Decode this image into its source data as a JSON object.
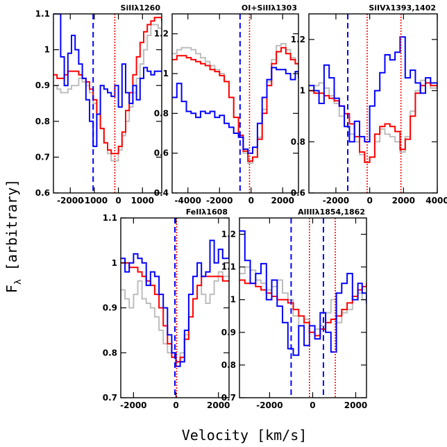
{
  "figure": {
    "ylabel_main": "F",
    "ylabel_sub": "λ",
    "ylabel_rest": " [arbitrary]",
    "xlabel": "Velocity [km/s]"
  },
  "colors": {
    "red": "#ff0000",
    "blue": "#0000ff",
    "gray": "#bdbdbd",
    "axis": "#000000"
  },
  "chart_data": [
    {
      "type": "line",
      "title": "SiIIλ1260",
      "xlim": [
        -2700,
        1800
      ],
      "ylim": [
        0.6,
        1.1
      ],
      "xticks": [
        -2000,
        -1000,
        0,
        1000
      ],
      "xtick_labels": [
        "-2000",
        "-1000",
        "0",
        "1000"
      ],
      "yticks": [
        0.6,
        0.7,
        0.8,
        0.9,
        1.0,
        1.1
      ],
      "ytick_labels": [
        "0.6",
        "0.7",
        "0.8",
        "0.9",
        "1",
        "1.1"
      ],
      "dashed": [
        -1050
      ],
      "dotted": [
        -150
      ],
      "series": [
        {
          "color": "gray",
          "x": [
            -2700,
            -2550,
            -2400,
            -2250,
            -2100,
            -1950,
            -1800,
            -1650,
            -1500,
            -1350,
            -1200,
            -1050,
            -900,
            -750,
            -600,
            -450,
            -300,
            -150,
            0,
            150,
            300,
            450,
            600,
            750,
            900,
            1050,
            1200,
            1350,
            1500,
            1650,
            1800
          ],
          "y": [
            0.9,
            0.89,
            0.88,
            0.88,
            0.89,
            0.9,
            0.9,
            0.92,
            0.91,
            0.9,
            0.88,
            0.85,
            0.82,
            0.78,
            0.74,
            0.71,
            0.69,
            0.69,
            0.72,
            0.76,
            0.8,
            0.84,
            0.88,
            0.92,
            0.96,
            1.0,
            1.04,
            1.07,
            1.07,
            1.06,
            1.05
          ]
        },
        {
          "color": "red",
          "x": [
            -2700,
            -2550,
            -2400,
            -2250,
            -2100,
            -1950,
            -1800,
            -1650,
            -1500,
            -1350,
            -1200,
            -1050,
            -900,
            -750,
            -600,
            -450,
            -300,
            -150,
            0,
            150,
            300,
            450,
            600,
            750,
            900,
            1050,
            1200,
            1350,
            1500,
            1650,
            1800
          ],
          "y": [
            0.93,
            0.92,
            0.92,
            0.93,
            0.94,
            0.94,
            0.94,
            0.93,
            0.92,
            0.91,
            0.89,
            0.86,
            0.82,
            0.78,
            0.74,
            0.72,
            0.71,
            0.71,
            0.73,
            0.77,
            0.83,
            0.88,
            0.93,
            0.98,
            1.02,
            1.05,
            1.07,
            1.08,
            1.09,
            1.09,
            1.08
          ]
        },
        {
          "color": "blue",
          "x": [
            -2700,
            -2550,
            -2400,
            -2250,
            -2100,
            -1950,
            -1800,
            -1650,
            -1500,
            -1350,
            -1200,
            -1050,
            -900,
            -750,
            -600,
            -450,
            -300,
            -150,
            0,
            150,
            300,
            450,
            600,
            750,
            900,
            1050,
            1200,
            1350,
            1500,
            1650,
            1800
          ],
          "y": [
            1.1,
            1.1,
            0.98,
            0.9,
            0.99,
            1.04,
            1.0,
            0.96,
            0.92,
            0.86,
            0.8,
            0.73,
            0.82,
            0.9,
            0.89,
            0.88,
            0.87,
            0.9,
            0.84,
            0.96,
            0.88,
            0.85,
            0.9,
            0.86,
            0.92,
            0.95,
            0.94,
            0.93,
            0.94,
            0.94,
            0.94
          ]
        }
      ]
    },
    {
      "type": "line",
      "title": "OI+SiIIλ1303",
      "xlim": [
        -5000,
        3000
      ],
      "ylim": [
        0.4,
        1.3
      ],
      "xticks": [
        -4000,
        -2000,
        0,
        2000
      ],
      "xtick_labels": [
        "-4000",
        "-2000",
        "0",
        "2000"
      ],
      "yticks": [
        0.4,
        0.6,
        0.8,
        1.0,
        1.2
      ],
      "ytick_labels": [
        "0.4",
        "0.6",
        "0.8",
        "1",
        "1.2"
      ],
      "dashed": [
        -700
      ],
      "dotted": [
        -100
      ],
      "series": [
        {
          "color": "gray",
          "x": [
            -5000,
            -4700,
            -4400,
            -4100,
            -3800,
            -3500,
            -3200,
            -2900,
            -2600,
            -2300,
            -2000,
            -1700,
            -1400,
            -1100,
            -800,
            -500,
            -200,
            100,
            400,
            700,
            1000,
            1300,
            1600,
            1900,
            2200,
            2500,
            2800,
            3000
          ],
          "y": [
            1.1,
            1.12,
            1.13,
            1.13,
            1.12,
            1.1,
            1.08,
            1.06,
            1.04,
            1.02,
            1.0,
            0.96,
            0.88,
            0.78,
            0.68,
            0.6,
            0.55,
            0.58,
            0.68,
            0.82,
            0.96,
            1.07,
            1.14,
            1.15,
            1.12,
            1.08,
            1.05,
            1.04
          ]
        },
        {
          "color": "red",
          "x": [
            -5000,
            -4700,
            -4400,
            -4100,
            -3800,
            -3500,
            -3200,
            -2900,
            -2600,
            -2300,
            -2000,
            -1700,
            -1400,
            -1100,
            -800,
            -500,
            -200,
            100,
            400,
            700,
            1000,
            1300,
            1600,
            1900,
            2200,
            2500,
            2800,
            3000
          ],
          "y": [
            1.07,
            1.09,
            1.09,
            1.08,
            1.07,
            1.06,
            1.05,
            1.04,
            1.02,
            1.01,
            0.99,
            0.96,
            0.88,
            0.78,
            0.69,
            0.61,
            0.56,
            0.58,
            0.67,
            0.8,
            0.94,
            1.05,
            1.11,
            1.13,
            1.1,
            1.07,
            1.05,
            1.05
          ]
        },
        {
          "color": "blue",
          "x": [
            -5000,
            -4700,
            -4400,
            -4100,
            -3800,
            -3500,
            -3200,
            -2900,
            -2600,
            -2300,
            -2000,
            -1700,
            -1400,
            -1100,
            -800,
            -500,
            -200,
            100,
            400,
            700,
            1000,
            1300,
            1600,
            1900,
            2200,
            2500,
            2800,
            3000
          ],
          "y": [
            0.88,
            0.95,
            0.86,
            0.81,
            0.8,
            0.78,
            0.81,
            0.8,
            0.81,
            0.78,
            0.79,
            0.75,
            0.73,
            0.7,
            0.68,
            0.62,
            0.6,
            0.63,
            0.75,
            0.88,
            0.97,
            1.03,
            1.02,
            1.02,
            1.0,
            0.97,
            1.01,
            0.98
          ]
        }
      ]
    },
    {
      "type": "line",
      "title": "SiIVλ1393,1402",
      "xlim": [
        -3600,
        4000
      ],
      "ylim": [
        0.6,
        1.3
      ],
      "xticks": [
        -2000,
        0,
        2000,
        4000
      ],
      "xtick_labels": [
        "-2000",
        "0",
        "2000",
        "4000"
      ],
      "yticks": [
        0.6,
        0.8,
        1.0,
        1.2
      ],
      "ytick_labels": [
        "0.6",
        "0.8",
        "1",
        "1.2"
      ],
      "dashed": [
        -1300
      ],
      "dotted": [
        -150,
        1850
      ],
      "series": [
        {
          "color": "gray",
          "x": [
            -3600,
            -3300,
            -3000,
            -2700,
            -2400,
            -2100,
            -1800,
            -1500,
            -1200,
            -900,
            -600,
            -300,
            0,
            300,
            600,
            900,
            1200,
            1500,
            1800,
            2100,
            2400,
            2700,
            3000,
            3300,
            3600,
            4000
          ],
          "y": [
            1.0,
            1.02,
            1.03,
            1.01,
            0.98,
            0.95,
            0.9,
            0.86,
            0.83,
            0.8,
            0.75,
            0.72,
            0.74,
            0.8,
            0.85,
            0.83,
            0.82,
            0.8,
            0.76,
            0.82,
            0.92,
            1.0,
            1.04,
            1.03,
            1.01,
            1.0
          ]
        },
        {
          "color": "red",
          "x": [
            -3600,
            -3300,
            -3000,
            -2700,
            -2400,
            -2100,
            -1800,
            -1500,
            -1200,
            -900,
            -600,
            -300,
            0,
            300,
            600,
            900,
            1200,
            1500,
            1800,
            2100,
            2400,
            2700,
            3000,
            3300,
            3600,
            4000
          ],
          "y": [
            1.0,
            0.99,
            0.99,
            0.98,
            0.97,
            0.96,
            0.94,
            0.91,
            0.87,
            0.82,
            0.76,
            0.72,
            0.74,
            0.83,
            0.86,
            0.87,
            0.86,
            0.84,
            0.77,
            0.81,
            0.9,
            0.99,
            1.02,
            1.03,
            1.02,
            1.01
          ]
        },
        {
          "color": "blue",
          "x": [
            -3600,
            -3300,
            -3000,
            -2700,
            -2400,
            -2100,
            -1800,
            -1500,
            -1200,
            -900,
            -600,
            -300,
            0,
            300,
            600,
            900,
            1200,
            1500,
            1800,
            2100,
            2400,
            2700,
            3000,
            3300,
            3600,
            4000
          ],
          "y": [
            1.02,
            1.0,
            0.95,
            1.1,
            1.05,
            0.97,
            0.94,
            0.86,
            0.8,
            0.88,
            0.82,
            0.8,
            0.94,
            1.0,
            1.07,
            1.14,
            1.12,
            1.15,
            1.21,
            1.05,
            1.08,
            1.03,
            0.99,
            1.05,
            1.03,
            1.02
          ]
        }
      ]
    },
    {
      "type": "line",
      "title": "FeIIλ1608",
      "xlim": [
        -2600,
        2500
      ],
      "ylim": [
        0.7,
        1.1
      ],
      "xticks": [
        -2000,
        0,
        2000
      ],
      "xtick_labels": [
        "-2000",
        "0",
        "2000"
      ],
      "yticks": [
        0.7,
        0.8,
        0.9,
        1.0,
        1.1
      ],
      "ytick_labels": [
        "0.7",
        "0.8",
        "0.9",
        "1",
        "1.1"
      ],
      "dashed": [
        -50
      ],
      "dotted": [
        30
      ],
      "series": [
        {
          "color": "gray",
          "x": [
            -2600,
            -2400,
            -2200,
            -2000,
            -1800,
            -1600,
            -1400,
            -1200,
            -1000,
            -800,
            -600,
            -400,
            -200,
            0,
            200,
            400,
            600,
            800,
            1000,
            1200,
            1400,
            1600,
            1800,
            2000,
            2200,
            2500
          ],
          "y": [
            0.94,
            0.92,
            0.9,
            0.93,
            0.96,
            0.92,
            0.91,
            0.9,
            0.88,
            0.85,
            0.82,
            0.8,
            0.79,
            0.78,
            0.8,
            0.84,
            0.88,
            0.92,
            0.95,
            0.93,
            0.91,
            0.93,
            0.96,
            0.98,
            0.97,
            0.97
          ]
        },
        {
          "color": "red",
          "x": [
            -2600,
            -2400,
            -2200,
            -2000,
            -1800,
            -1600,
            -1400,
            -1200,
            -1000,
            -800,
            -600,
            -400,
            -200,
            0,
            200,
            400,
            600,
            800,
            1000,
            1200,
            1400,
            1600,
            1800,
            2000,
            2200,
            2500
          ],
          "y": [
            1.0,
            1.0,
            0.99,
            0.99,
            0.98,
            0.97,
            0.96,
            0.95,
            0.93,
            0.9,
            0.86,
            0.82,
            0.79,
            0.78,
            0.79,
            0.83,
            0.88,
            0.92,
            0.95,
            0.97,
            0.97,
            0.97,
            0.97,
            0.97,
            0.96,
            0.96
          ]
        },
        {
          "color": "blue",
          "x": [
            -2600,
            -2400,
            -2200,
            -2000,
            -1800,
            -1600,
            -1400,
            -1200,
            -1000,
            -800,
            -600,
            -400,
            -200,
            0,
            200,
            400,
            600,
            800,
            1000,
            1200,
            1400,
            1600,
            1800,
            2000,
            2200,
            2500
          ],
          "y": [
            1.01,
            0.98,
            1.0,
            1.02,
            1.01,
            1.0,
            0.95,
            0.98,
            0.97,
            0.93,
            0.9,
            0.84,
            0.8,
            0.77,
            0.78,
            0.85,
            0.93,
            0.97,
            1.0,
            0.97,
            0.98,
            1.05,
            1.0,
            1.03,
            1.01,
            1.06
          ]
        }
      ]
    },
    {
      "type": "line",
      "title": "AlIIIλ1854,1862",
      "xlim": [
        -3400,
        2500
      ],
      "ylim": [
        0.7,
        1.25
      ],
      "xticks": [
        -2000,
        0,
        2000
      ],
      "xtick_labels": [
        "-2000",
        "0",
        "2000"
      ],
      "yticks": [
        0.7,
        0.8,
        0.9,
        1.0,
        1.1,
        1.2
      ],
      "ytick_labels": [
        "0.7",
        "0.8",
        "0.9",
        "1",
        "1.1",
        "1.2"
      ],
      "dashed": [
        -1000,
        500
      ],
      "dotted": [
        -150,
        1050
      ],
      "series": [
        {
          "color": "gray",
          "x": [
            -3400,
            -3150,
            -2900,
            -2650,
            -2400,
            -2150,
            -1900,
            -1650,
            -1400,
            -1150,
            -900,
            -650,
            -400,
            -150,
            100,
            350,
            600,
            850,
            1100,
            1350,
            1600,
            1850,
            2100,
            2300,
            2500
          ],
          "y": [
            1.08,
            1.1,
            1.09,
            1.06,
            1.05,
            1.03,
            1.04,
            1.06,
            1.02,
            1.0,
            0.95,
            0.92,
            0.94,
            0.9,
            0.91,
            0.92,
            0.96,
            1.0,
            0.93,
            0.96,
            0.97,
            1.01,
            1.02,
            1.0,
            0.99
          ]
        },
        {
          "color": "red",
          "x": [
            -3400,
            -3150,
            -2900,
            -2650,
            -2400,
            -2150,
            -1900,
            -1650,
            -1400,
            -1150,
            -900,
            -650,
            -400,
            -150,
            100,
            350,
            600,
            850,
            1100,
            1350,
            1600,
            1850,
            2100,
            2300,
            2500
          ],
          "y": [
            1.06,
            1.05,
            1.05,
            1.04,
            1.03,
            1.02,
            1.01,
            1.0,
            1.0,
            0.99,
            0.97,
            0.95,
            0.93,
            0.9,
            0.89,
            0.91,
            0.93,
            0.94,
            0.95,
            0.97,
            0.99,
            1.01,
            1.03,
            1.04,
            1.05
          ]
        },
        {
          "color": "blue",
          "x": [
            -3400,
            -3150,
            -2900,
            -2650,
            -2400,
            -2150,
            -1900,
            -1650,
            -1400,
            -1150,
            -900,
            -650,
            -400,
            -150,
            100,
            350,
            600,
            850,
            1100,
            1350,
            1600,
            1850,
            2100,
            2300,
            2500
          ],
          "y": [
            1.21,
            1.12,
            1.05,
            1.08,
            1.11,
            1.0,
            1.06,
            0.98,
            0.93,
            0.85,
            0.83,
            0.92,
            0.86,
            0.92,
            0.88,
            0.96,
            0.9,
            0.84,
            1.02,
            1.05,
            1.08,
            1.0,
            1.05,
            1.02,
            0.99
          ]
        }
      ]
    }
  ]
}
